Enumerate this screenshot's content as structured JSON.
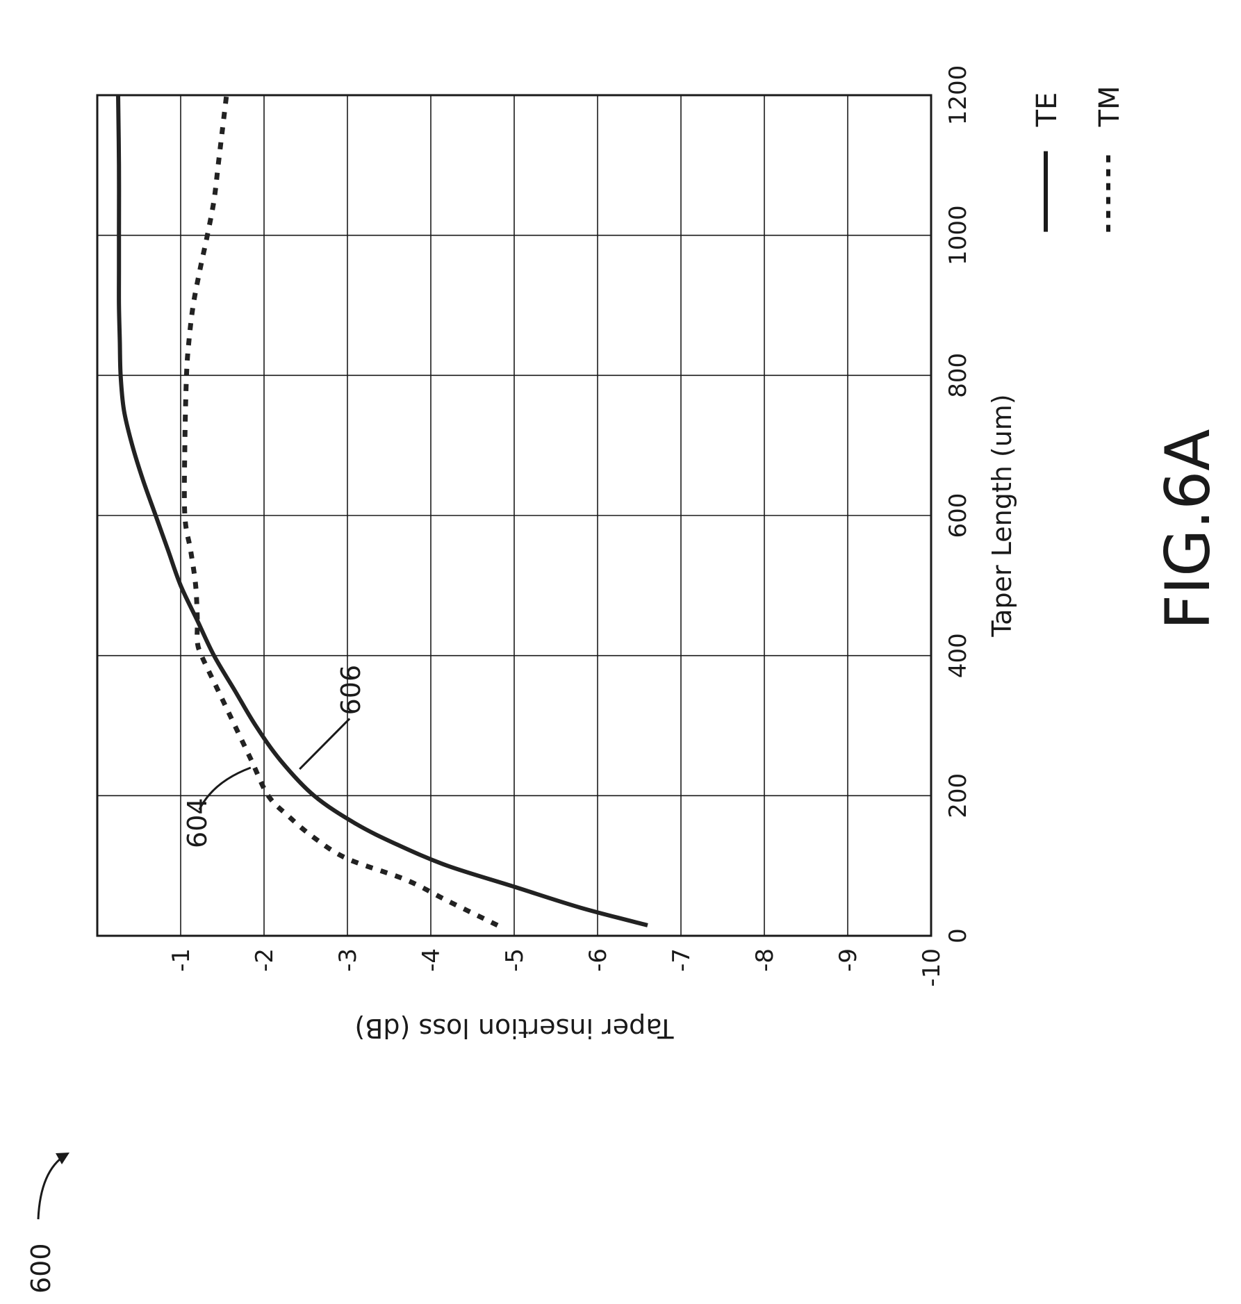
{
  "chart_data": {
    "type": "line",
    "figure_label": "FIG.6A",
    "figure_ref": "600",
    "xlabel": "Taper Length (um)",
    "ylabel": "Taper insertion loss (dB)",
    "xlim": [
      0,
      1200
    ],
    "ylim": [
      -10,
      0
    ],
    "x_ticks": [
      {
        "value": 0,
        "label": "0"
      },
      {
        "value": 200,
        "label": "200"
      },
      {
        "value": 400,
        "label": "400"
      },
      {
        "value": 600,
        "label": "600"
      },
      {
        "value": 800,
        "label": "800"
      },
      {
        "value": 1000,
        "label": "1000"
      },
      {
        "value": 1200,
        "label": "1200"
      }
    ],
    "y_ticks": [
      {
        "value": -1,
        "label": "-1"
      },
      {
        "value": -2,
        "label": "-2"
      },
      {
        "value": -3,
        "label": "-3"
      },
      {
        "value": -4,
        "label": "-4"
      },
      {
        "value": -5,
        "label": "-5"
      },
      {
        "value": -6,
        "label": "-6"
      },
      {
        "value": -7,
        "label": "-7"
      },
      {
        "value": -8,
        "label": "-8"
      },
      {
        "value": -9,
        "label": "-9"
      },
      {
        "value": -10,
        "label": "-10"
      }
    ],
    "grid": true,
    "legend_position": "right",
    "series": [
      {
        "name": "TE",
        "style": "solid",
        "color": "#222222",
        "callout": "606",
        "x": [
          15,
          40,
          70,
          100,
          130,
          160,
          200,
          250,
          300,
          350,
          400,
          450,
          500,
          550,
          600,
          650,
          700,
          750,
          800,
          850,
          900,
          950,
          1000,
          1100,
          1200
        ],
        "y": [
          -6.6,
          -5.8,
          -5.0,
          -4.2,
          -3.6,
          -3.1,
          -2.6,
          -2.2,
          -1.9,
          -1.65,
          -1.4,
          -1.2,
          -1.0,
          -0.85,
          -0.7,
          -0.55,
          -0.42,
          -0.32,
          -0.28,
          -0.27,
          -0.26,
          -0.26,
          -0.26,
          -0.26,
          -0.25
        ]
      },
      {
        "name": "TM",
        "style": "dashed",
        "color": "#222222",
        "callout": "604",
        "x": [
          15,
          50,
          80,
          110,
          140,
          170,
          200,
          250,
          300,
          350,
          400,
          420,
          450,
          500,
          550,
          600,
          700,
          800,
          850,
          900,
          950,
          1000,
          1050,
          1100,
          1150,
          1200
        ],
        "y": [
          -4.8,
          -4.2,
          -3.7,
          -3.0,
          -2.6,
          -2.3,
          -2.05,
          -1.85,
          -1.65,
          -1.45,
          -1.25,
          -1.2,
          -1.2,
          -1.18,
          -1.12,
          -1.05,
          -1.05,
          -1.07,
          -1.1,
          -1.15,
          -1.23,
          -1.32,
          -1.4,
          -1.45,
          -1.5,
          -1.55
        ]
      }
    ]
  }
}
